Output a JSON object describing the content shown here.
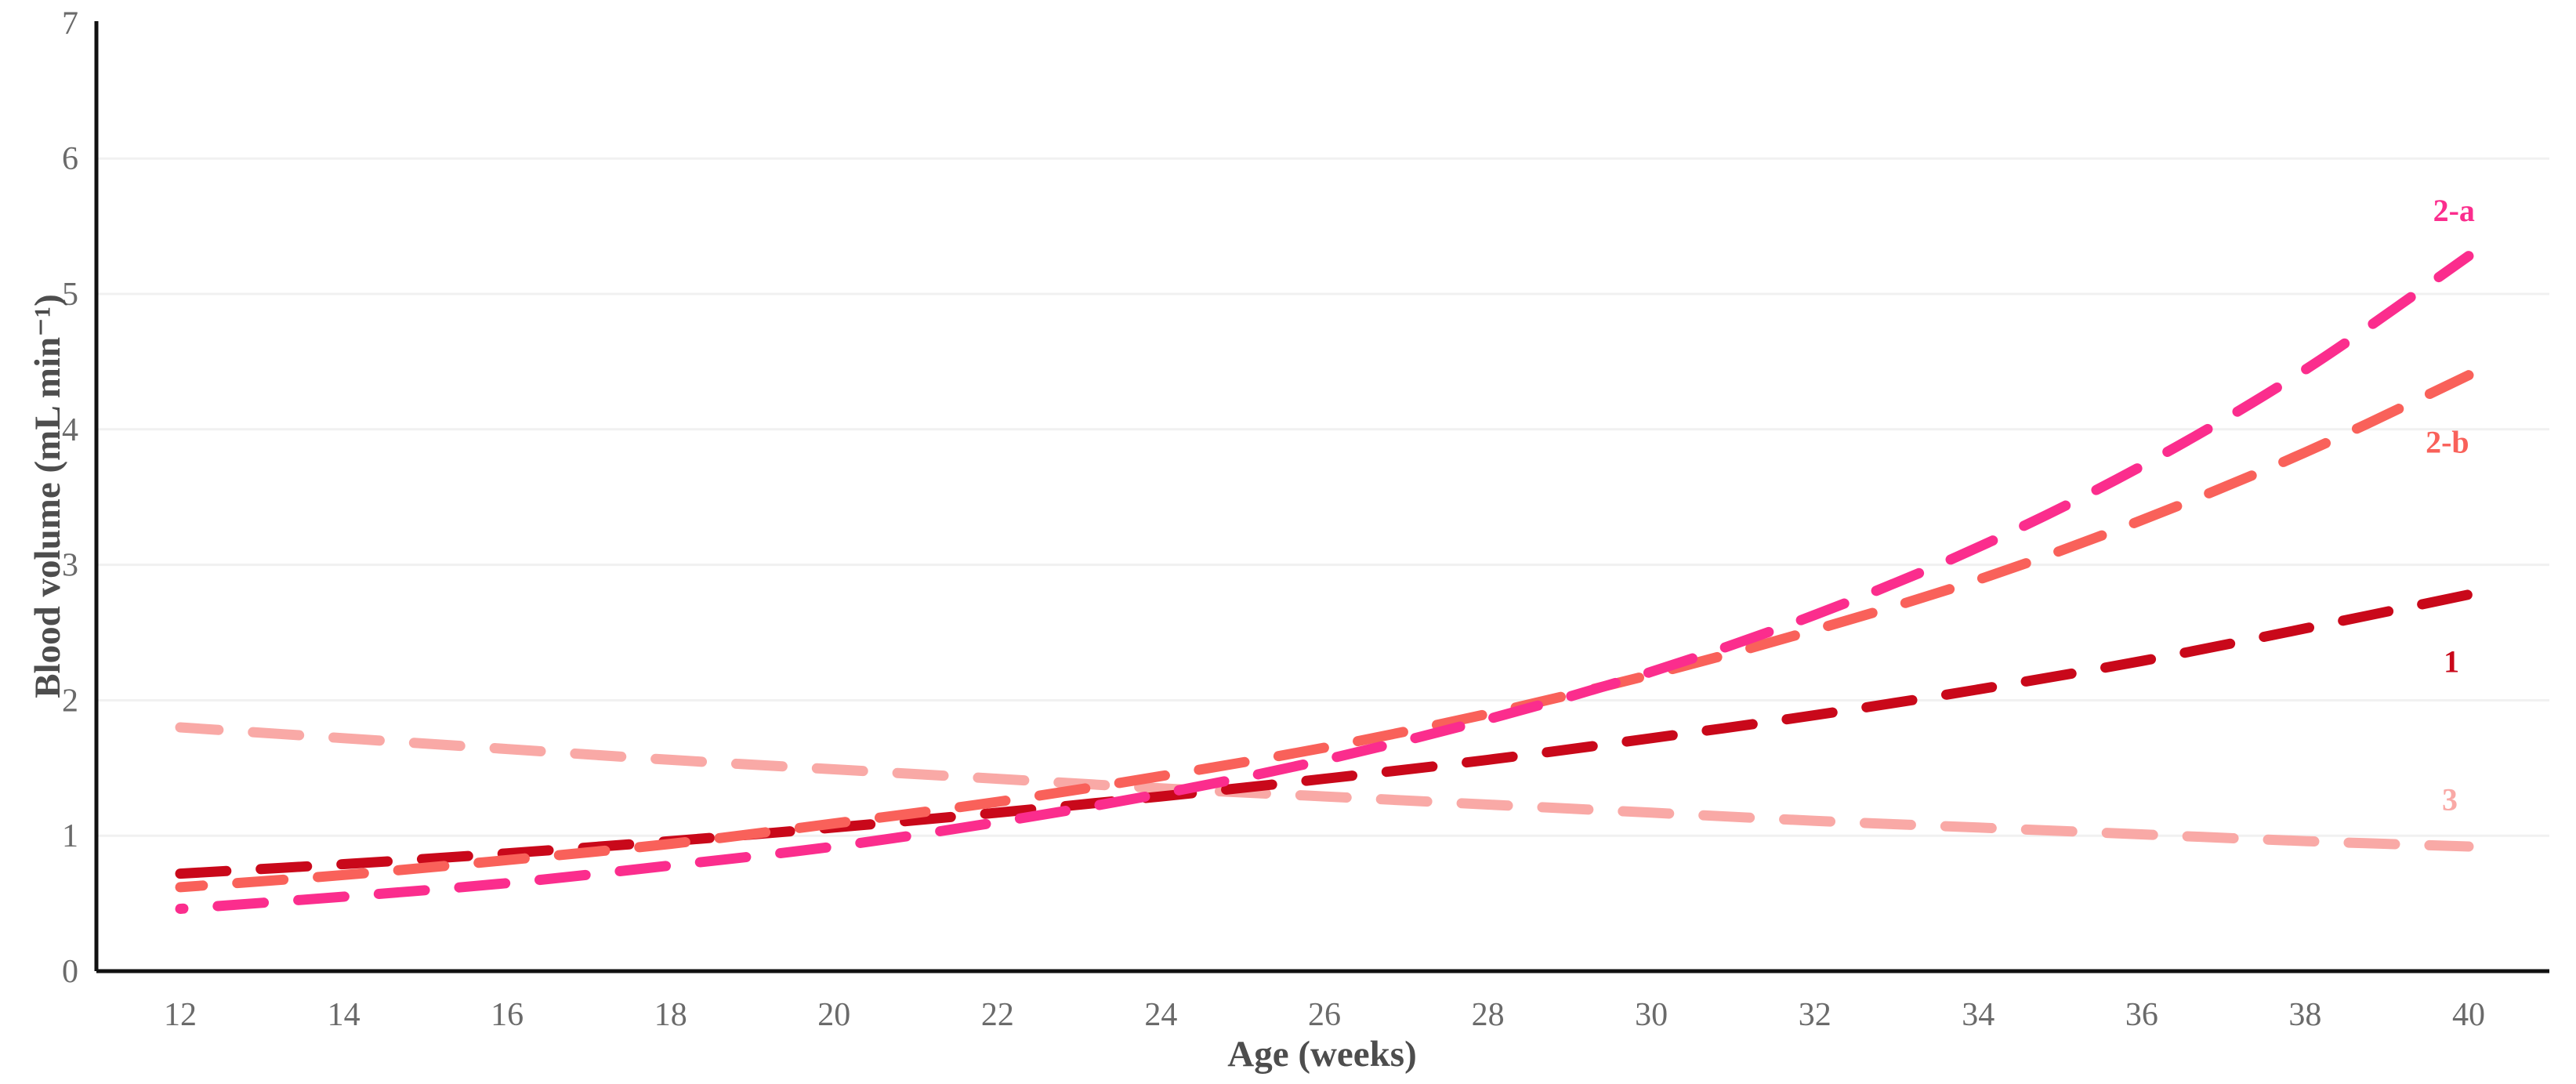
{
  "chart_data": {
    "type": "line",
    "title": "",
    "xlabel": "Age (weeks)",
    "ylabel": "Blood volume (mL min⁻¹)",
    "line_style": "dashed",
    "grid": "horizontal-only",
    "legend_position": "inline-right-labels",
    "xlim": [
      10.95,
      41
    ],
    "ylim": [
      0,
      7
    ],
    "x_ticks": [
      12,
      14,
      16,
      18,
      20,
      22,
      24,
      26,
      28,
      30,
      32,
      34,
      36,
      38,
      40
    ],
    "y_ticks": [
      0,
      1,
      2,
      3,
      4,
      5,
      6,
      7
    ],
    "x": [
      12,
      14,
      16,
      18,
      20,
      22,
      24,
      26,
      28,
      30,
      32,
      34,
      36,
      38,
      40
    ],
    "series": [
      {
        "name": "3",
        "color": "#F9A9A6",
        "values": [
          1.8,
          1.72,
          1.64,
          1.56,
          1.49,
          1.42,
          1.35,
          1.29,
          1.23,
          1.17,
          1.11,
          1.06,
          1.01,
          0.96,
          0.92
        ],
        "label": {
          "text": "3",
          "week": 39.77,
          "value": 1.27
        }
      },
      {
        "name": "1",
        "color": "#C9081A",
        "values": [
          0.72,
          0.79,
          0.87,
          0.96,
          1.06,
          1.17,
          1.29,
          1.42,
          1.56,
          1.72,
          1.89,
          2.08,
          2.29,
          2.53,
          2.78
        ],
        "label": {
          "text": "1",
          "week": 39.79,
          "value": 2.29
        }
      },
      {
        "name": "2-b",
        "color": "#F9615A",
        "values": [
          0.62,
          0.71,
          0.82,
          0.94,
          1.09,
          1.25,
          1.44,
          1.65,
          1.9,
          2.19,
          2.52,
          2.89,
          3.33,
          3.83,
          4.4
        ],
        "label": {
          "text": "2-b",
          "week": 39.74,
          "value": 3.91
        }
      },
      {
        "name": "2-a",
        "color": "#FB2D8D",
        "values": [
          0.46,
          0.55,
          0.65,
          0.78,
          0.92,
          1.1,
          1.31,
          1.56,
          1.86,
          2.21,
          2.63,
          3.13,
          3.73,
          4.44,
          5.28
        ],
        "label": {
          "text": "2-a",
          "week": 39.82,
          "value": 5.62
        }
      }
    ],
    "colors": {
      "axis": "#111111",
      "grid": "#f1f1f1",
      "tick_text": "#6a6a6a",
      "title_text": "#4d4d4d",
      "background": "#ffffff"
    }
  }
}
